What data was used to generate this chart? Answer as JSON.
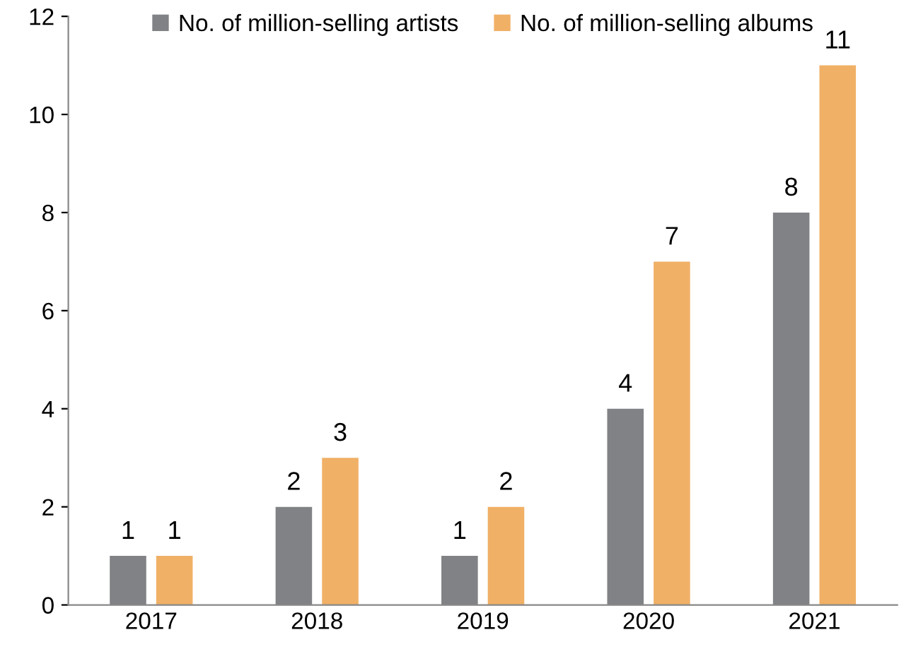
{
  "chart_data": {
    "type": "bar",
    "categories": [
      "2017",
      "2018",
      "2019",
      "2020",
      "2021"
    ],
    "series": [
      {
        "name": "No. of million-selling artists",
        "color": "#808285",
        "values": [
          1,
          2,
          1,
          4,
          8
        ]
      },
      {
        "name": "No. of million-selling albums",
        "color": "#f0b066",
        "values": [
          1,
          3,
          2,
          7,
          11
        ]
      }
    ],
    "ylim": [
      0,
      12
    ],
    "yticks": [
      0,
      2,
      4,
      6,
      8,
      10,
      12
    ],
    "data_labels": true,
    "legend": "top",
    "grid": false
  }
}
